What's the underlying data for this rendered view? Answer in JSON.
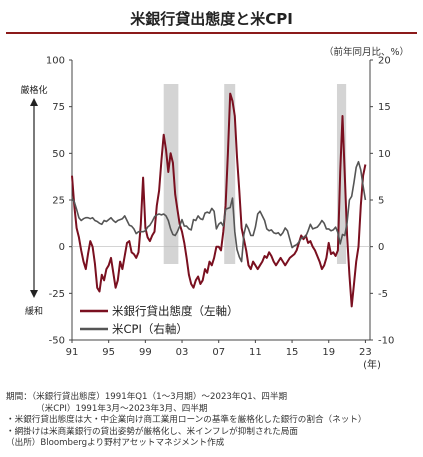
{
  "title": "米銀行貸出態度と米CPI",
  "unit_label": "（前年同月比、%）",
  "chart_data": {
    "type": "line",
    "x_unit": "(年)",
    "xlim": [
      1991.0,
      2023.5
    ],
    "ylim_left": [
      -50,
      100
    ],
    "ylim_right": [
      -10,
      20
    ],
    "x_ticks": [
      {
        "v": 1991,
        "label": "91"
      },
      {
        "v": 1995,
        "label": "95"
      },
      {
        "v": 1999,
        "label": "99"
      },
      {
        "v": 2003,
        "label": "03"
      },
      {
        "v": 2007,
        "label": "07"
      },
      {
        "v": 2011,
        "label": "11"
      },
      {
        "v": 2015,
        "label": "15"
      },
      {
        "v": 2019,
        "label": "19"
      },
      {
        "v": 2023,
        "label": "23"
      }
    ],
    "y_ticks_left": [
      -50,
      -25,
      0,
      25,
      50,
      75,
      100
    ],
    "y_ticks_right": [
      -10,
      -5,
      0,
      5,
      10,
      15,
      20
    ],
    "grid": false,
    "annotations": {
      "tighten": "厳格化",
      "ease": "緩和"
    },
    "shaded_periods": [
      [
        2001.0,
        2002.6
      ],
      [
        2007.6,
        2008.8
      ],
      [
        2019.9,
        2020.9
      ]
    ],
    "series": [
      {
        "name": "米銀行貸出態度（左軸）",
        "axis": "left",
        "color": "#7a1020",
        "points": [
          [
            1991.0,
            38
          ],
          [
            1991.25,
            22
          ],
          [
            1991.5,
            10
          ],
          [
            1991.75,
            5
          ],
          [
            1992.0,
            -2
          ],
          [
            1992.25,
            -8
          ],
          [
            1992.5,
            -12
          ],
          [
            1992.75,
            -4
          ],
          [
            1993.0,
            3
          ],
          [
            1993.25,
            0
          ],
          [
            1993.5,
            -9
          ],
          [
            1993.75,
            -22
          ],
          [
            1994.0,
            -24
          ],
          [
            1994.25,
            -15
          ],
          [
            1994.5,
            -18
          ],
          [
            1994.75,
            -12
          ],
          [
            1995.0,
            -10
          ],
          [
            1995.25,
            -6
          ],
          [
            1995.5,
            -14
          ],
          [
            1995.75,
            -22
          ],
          [
            1996.0,
            -18
          ],
          [
            1996.25,
            -8
          ],
          [
            1996.5,
            -12
          ],
          [
            1996.75,
            -5
          ],
          [
            1997.0,
            2
          ],
          [
            1997.25,
            3
          ],
          [
            1997.5,
            -3
          ],
          [
            1997.75,
            -4
          ],
          [
            1998.0,
            -6
          ],
          [
            1998.25,
            -3
          ],
          [
            1998.5,
            12
          ],
          [
            1998.75,
            37
          ],
          [
            1999.0,
            10
          ],
          [
            1999.25,
            5
          ],
          [
            1999.5,
            3
          ],
          [
            1999.75,
            6
          ],
          [
            2000.0,
            8
          ],
          [
            2000.25,
            22
          ],
          [
            2000.5,
            30
          ],
          [
            2000.75,
            46
          ],
          [
            2001.0,
            60
          ],
          [
            2001.25,
            52
          ],
          [
            2001.5,
            40
          ],
          [
            2001.75,
            50
          ],
          [
            2002.0,
            45
          ],
          [
            2002.25,
            28
          ],
          [
            2002.5,
            20
          ],
          [
            2002.75,
            12
          ],
          [
            2003.0,
            8
          ],
          [
            2003.25,
            2
          ],
          [
            2003.5,
            -6
          ],
          [
            2003.75,
            -15
          ],
          [
            2004.0,
            -20
          ],
          [
            2004.25,
            -22
          ],
          [
            2004.5,
            -18
          ],
          [
            2004.75,
            -16
          ],
          [
            2005.0,
            -20
          ],
          [
            2005.25,
            -18
          ],
          [
            2005.5,
            -12
          ],
          [
            2005.75,
            -14
          ],
          [
            2006.0,
            -8
          ],
          [
            2006.25,
            -10
          ],
          [
            2006.5,
            -6
          ],
          [
            2006.75,
            0
          ],
          [
            2007.0,
            0
          ],
          [
            2007.25,
            -2
          ],
          [
            2007.5,
            8
          ],
          [
            2007.75,
            22
          ],
          [
            2008.0,
            50
          ],
          [
            2008.25,
            82
          ],
          [
            2008.5,
            78
          ],
          [
            2008.75,
            70
          ],
          [
            2009.0,
            48
          ],
          [
            2009.25,
            30
          ],
          [
            2009.5,
            10
          ],
          [
            2009.75,
            4
          ],
          [
            2010.0,
            -2
          ],
          [
            2010.25,
            -10
          ],
          [
            2010.5,
            -12
          ],
          [
            2010.75,
            -8
          ],
          [
            2011.0,
            -10
          ],
          [
            2011.25,
            -12
          ],
          [
            2011.5,
            -10
          ],
          [
            2011.75,
            -8
          ],
          [
            2012.0,
            -5
          ],
          [
            2012.25,
            -6
          ],
          [
            2012.5,
            -3
          ],
          [
            2012.75,
            -5
          ],
          [
            2013.0,
            -8
          ],
          [
            2013.25,
            -10
          ],
          [
            2013.5,
            -8
          ],
          [
            2013.75,
            -6
          ],
          [
            2014.0,
            -8
          ],
          [
            2014.25,
            -10
          ],
          [
            2014.5,
            -8
          ],
          [
            2014.75,
            -6
          ],
          [
            2015.0,
            -5
          ],
          [
            2015.25,
            -4
          ],
          [
            2015.5,
            -2
          ],
          [
            2015.75,
            2
          ],
          [
            2016.0,
            6
          ],
          [
            2016.25,
            4
          ],
          [
            2016.5,
            6
          ],
          [
            2016.75,
            2
          ],
          [
            2017.0,
            3
          ],
          [
            2017.25,
            0
          ],
          [
            2017.5,
            -2
          ],
          [
            2017.75,
            -5
          ],
          [
            2018.0,
            -8
          ],
          [
            2018.25,
            -12
          ],
          [
            2018.5,
            -10
          ],
          [
            2018.75,
            -6
          ],
          [
            2019.0,
            2
          ],
          [
            2019.25,
            -4
          ],
          [
            2019.5,
            -3
          ],
          [
            2019.75,
            -5
          ],
          [
            2020.0,
            -2
          ],
          [
            2020.25,
            40
          ],
          [
            2020.5,
            70
          ],
          [
            2020.75,
            38
          ],
          [
            2021.0,
            6
          ],
          [
            2021.25,
            -15
          ],
          [
            2021.5,
            -32
          ],
          [
            2021.75,
            -20
          ],
          [
            2022.0,
            -8
          ],
          [
            2022.25,
            0
          ],
          [
            2022.5,
            22
          ],
          [
            2022.75,
            38
          ],
          [
            2023.0,
            44
          ]
        ]
      },
      {
        "name": "米CPI（右軸）",
        "axis": "right",
        "color": "#555555",
        "points": [
          [
            1991.0,
            5.2
          ],
          [
            1991.25,
            4.8
          ],
          [
            1991.5,
            4.0
          ],
          [
            1991.75,
            3.1
          ],
          [
            1992.0,
            2.8
          ],
          [
            1992.25,
            3.0
          ],
          [
            1992.5,
            3.1
          ],
          [
            1992.75,
            3.1
          ],
          [
            1993.0,
            3.0
          ],
          [
            1993.25,
            3.1
          ],
          [
            1993.5,
            2.8
          ],
          [
            1993.75,
            2.7
          ],
          [
            1994.0,
            2.5
          ],
          [
            1994.25,
            2.4
          ],
          [
            1994.5,
            2.8
          ],
          [
            1994.75,
            2.7
          ],
          [
            1995.0,
            2.9
          ],
          [
            1995.25,
            3.1
          ],
          [
            1995.5,
            2.8
          ],
          [
            1995.75,
            2.6
          ],
          [
            1996.0,
            2.8
          ],
          [
            1996.25,
            2.9
          ],
          [
            1996.5,
            3.0
          ],
          [
            1996.75,
            3.3
          ],
          [
            1997.0,
            2.8
          ],
          [
            1997.25,
            2.3
          ],
          [
            1997.5,
            2.2
          ],
          [
            1997.75,
            1.9
          ],
          [
            1998.0,
            1.4
          ],
          [
            1998.25,
            1.6
          ],
          [
            1998.5,
            1.6
          ],
          [
            1998.75,
            1.6
          ],
          [
            1999.0,
            1.7
          ],
          [
            1999.25,
            2.1
          ],
          [
            1999.5,
            2.3
          ],
          [
            1999.75,
            2.7
          ],
          [
            2000.0,
            3.2
          ],
          [
            2000.25,
            3.4
          ],
          [
            2000.5,
            3.5
          ],
          [
            2000.75,
            3.4
          ],
          [
            2001.0,
            3.5
          ],
          [
            2001.25,
            3.3
          ],
          [
            2001.5,
            2.8
          ],
          [
            2001.75,
            1.9
          ],
          [
            2002.0,
            1.3
          ],
          [
            2002.25,
            1.2
          ],
          [
            2002.5,
            1.6
          ],
          [
            2002.75,
            2.2
          ],
          [
            2003.0,
            2.9
          ],
          [
            2003.25,
            2.2
          ],
          [
            2003.5,
            2.2
          ],
          [
            2003.75,
            1.9
          ],
          [
            2004.0,
            1.8
          ],
          [
            2004.25,
            2.9
          ],
          [
            2004.5,
            2.8
          ],
          [
            2004.75,
            3.3
          ],
          [
            2005.0,
            3.0
          ],
          [
            2005.25,
            2.9
          ],
          [
            2005.5,
            3.6
          ],
          [
            2005.75,
            3.7
          ],
          [
            2006.0,
            3.6
          ],
          [
            2006.25,
            4.1
          ],
          [
            2006.5,
            3.8
          ],
          [
            2006.75,
            1.9
          ],
          [
            2007.0,
            2.4
          ],
          [
            2007.25,
            2.6
          ],
          [
            2007.5,
            2.2
          ],
          [
            2007.75,
            4.0
          ],
          [
            2008.0,
            4.1
          ],
          [
            2008.25,
            4.2
          ],
          [
            2008.5,
            5.2
          ],
          [
            2008.75,
            1.6
          ],
          [
            2009.0,
            -0.3
          ],
          [
            2009.25,
            -1.1
          ],
          [
            2009.5,
            -1.6
          ],
          [
            2009.75,
            1.3
          ],
          [
            2010.0,
            2.4
          ],
          [
            2010.25,
            1.9
          ],
          [
            2010.5,
            1.2
          ],
          [
            2010.75,
            1.2
          ],
          [
            2011.0,
            2.1
          ],
          [
            2011.25,
            3.5
          ],
          [
            2011.5,
            3.8
          ],
          [
            2011.75,
            3.3
          ],
          [
            2012.0,
            2.8
          ],
          [
            2012.25,
            1.9
          ],
          [
            2012.5,
            1.7
          ],
          [
            2012.75,
            1.8
          ],
          [
            2013.0,
            1.5
          ],
          [
            2013.25,
            1.4
          ],
          [
            2013.5,
            1.5
          ],
          [
            2013.75,
            1.2
          ],
          [
            2014.0,
            1.5
          ],
          [
            2014.25,
            2.0
          ],
          [
            2014.5,
            1.7
          ],
          [
            2014.75,
            0.8
          ],
          [
            2015.0,
            -0.1
          ],
          [
            2015.25,
            0.1
          ],
          [
            2015.5,
            0.2
          ],
          [
            2015.75,
            0.5
          ],
          [
            2016.0,
            0.9
          ],
          [
            2016.25,
            1.0
          ],
          [
            2016.5,
            1.1
          ],
          [
            2016.75,
            1.7
          ],
          [
            2017.0,
            2.4
          ],
          [
            2017.25,
            1.9
          ],
          [
            2017.5,
            2.0
          ],
          [
            2017.75,
            2.1
          ],
          [
            2018.0,
            2.4
          ],
          [
            2018.25,
            2.8
          ],
          [
            2018.5,
            2.5
          ],
          [
            2018.75,
            1.9
          ],
          [
            2019.0,
            1.9
          ],
          [
            2019.25,
            1.7
          ],
          [
            2019.5,
            1.8
          ],
          [
            2019.75,
            2.1
          ],
          [
            2020.0,
            1.5
          ],
          [
            2020.25,
            0.3
          ],
          [
            2020.5,
            1.3
          ],
          [
            2020.75,
            1.2
          ],
          [
            2021.0,
            2.6
          ],
          [
            2021.25,
            5.0
          ],
          [
            2021.5,
            5.4
          ],
          [
            2021.75,
            6.9
          ],
          [
            2022.0,
            8.5
          ],
          [
            2022.25,
            9.1
          ],
          [
            2022.5,
            8.2
          ],
          [
            2022.75,
            6.5
          ],
          [
            2023.0,
            5.0
          ]
        ]
      }
    ]
  },
  "notes": [
    "期間：（米銀行貸出態度）1991年Q1（1～3月期）～2023年Q1、四半期",
    "（米CPI）1991年3月～2023年3月、四半期",
    "・米銀行貸出態度は大・中企業向け商工業用ローンの基準を厳格化した銀行の割合（ネット）",
    "・網掛けは米商業銀行の貸出姿勢が厳格化し、米インフレが抑制された局面",
    "（出所）Bloombergより野村アセットマネジメント作成"
  ]
}
